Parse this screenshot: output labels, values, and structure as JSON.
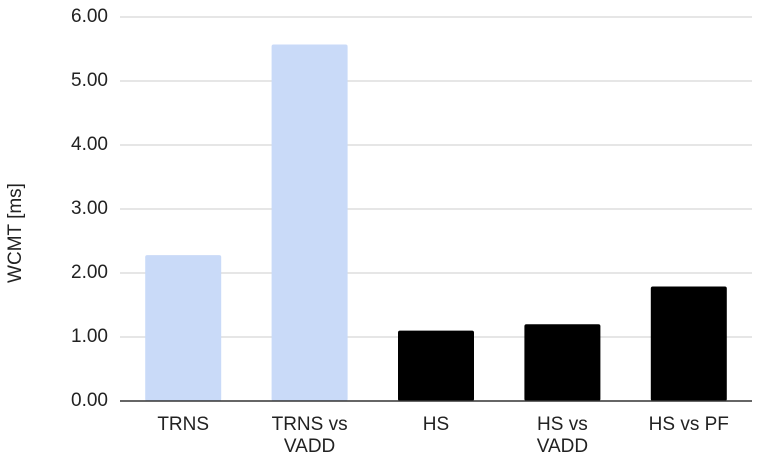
{
  "chart_data": {
    "type": "bar",
    "y_label": "WCMT [ms]",
    "categories": [
      "TRNS",
      "TRNS vs VADD",
      "HS",
      "HS vs VADD",
      "HS vs PF"
    ],
    "values": [
      2.28,
      5.57,
      1.1,
      1.2,
      1.79
    ],
    "colors": [
      "#c9daf8",
      "#c9daf8",
      "#000000",
      "#000000",
      "#000000"
    ],
    "ylim": [
      0,
      6
    ],
    "yticks": [
      {
        "value": 0,
        "label": "0.00"
      },
      {
        "value": 1,
        "label": "1.00"
      },
      {
        "value": 2,
        "label": "2.00"
      },
      {
        "value": 3,
        "label": "3.00"
      },
      {
        "value": 4,
        "label": "4.00"
      },
      {
        "value": 5,
        "label": "5.00"
      },
      {
        "value": 6,
        "label": "6.00"
      }
    ],
    "grid": true
  }
}
